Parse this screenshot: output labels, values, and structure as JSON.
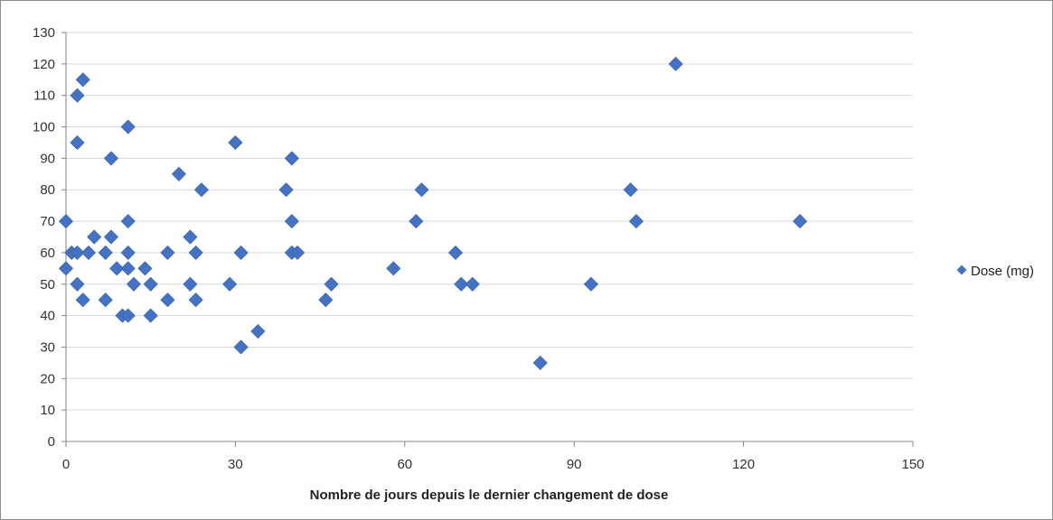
{
  "chart_data": {
    "type": "scatter",
    "title": "",
    "xlabel": "Nombre de jours depuis le dernier changement de dose",
    "ylabel": "",
    "xlim": [
      0,
      150
    ],
    "ylim": [
      0,
      130
    ],
    "xticks": [
      0,
      30,
      60,
      90,
      120,
      150
    ],
    "yticks": [
      0,
      10,
      20,
      30,
      40,
      50,
      60,
      70,
      80,
      90,
      100,
      110,
      120,
      130
    ],
    "grid": "horizontal",
    "legend_position": "right",
    "series": [
      {
        "name": "Dose (mg)",
        "color": "#4472C4",
        "marker": "diamond",
        "points": [
          [
            0,
            55
          ],
          [
            0,
            70
          ],
          [
            1,
            60
          ],
          [
            2,
            60
          ],
          [
            2,
            50
          ],
          [
            2,
            95
          ],
          [
            2,
            110
          ],
          [
            3,
            115
          ],
          [
            3,
            45
          ],
          [
            4,
            60
          ],
          [
            5,
            65
          ],
          [
            7,
            60
          ],
          [
            7,
            45
          ],
          [
            8,
            65
          ],
          [
            8,
            90
          ],
          [
            9,
            55
          ],
          [
            10,
            40
          ],
          [
            11,
            40
          ],
          [
            11,
            55
          ],
          [
            11,
            60
          ],
          [
            11,
            70
          ],
          [
            11,
            100
          ],
          [
            12,
            50
          ],
          [
            14,
            55
          ],
          [
            15,
            50
          ],
          [
            15,
            40
          ],
          [
            18,
            45
          ],
          [
            18,
            60
          ],
          [
            20,
            85
          ],
          [
            22,
            65
          ],
          [
            22,
            50
          ],
          [
            23,
            60
          ],
          [
            23,
            45
          ],
          [
            24,
            80
          ],
          [
            29,
            50
          ],
          [
            30,
            95
          ],
          [
            31,
            30
          ],
          [
            31,
            60
          ],
          [
            34,
            35
          ],
          [
            39,
            80
          ],
          [
            40,
            90
          ],
          [
            40,
            70
          ],
          [
            40,
            60
          ],
          [
            41,
            60
          ],
          [
            46,
            45
          ],
          [
            47,
            50
          ],
          [
            58,
            55
          ],
          [
            62,
            70
          ],
          [
            63,
            80
          ],
          [
            69,
            60
          ],
          [
            70,
            50
          ],
          [
            72,
            50
          ],
          [
            84,
            25
          ],
          [
            93,
            50
          ],
          [
            100,
            80
          ],
          [
            101,
            70
          ],
          [
            108,
            120
          ],
          [
            130,
            70
          ]
        ]
      }
    ]
  }
}
